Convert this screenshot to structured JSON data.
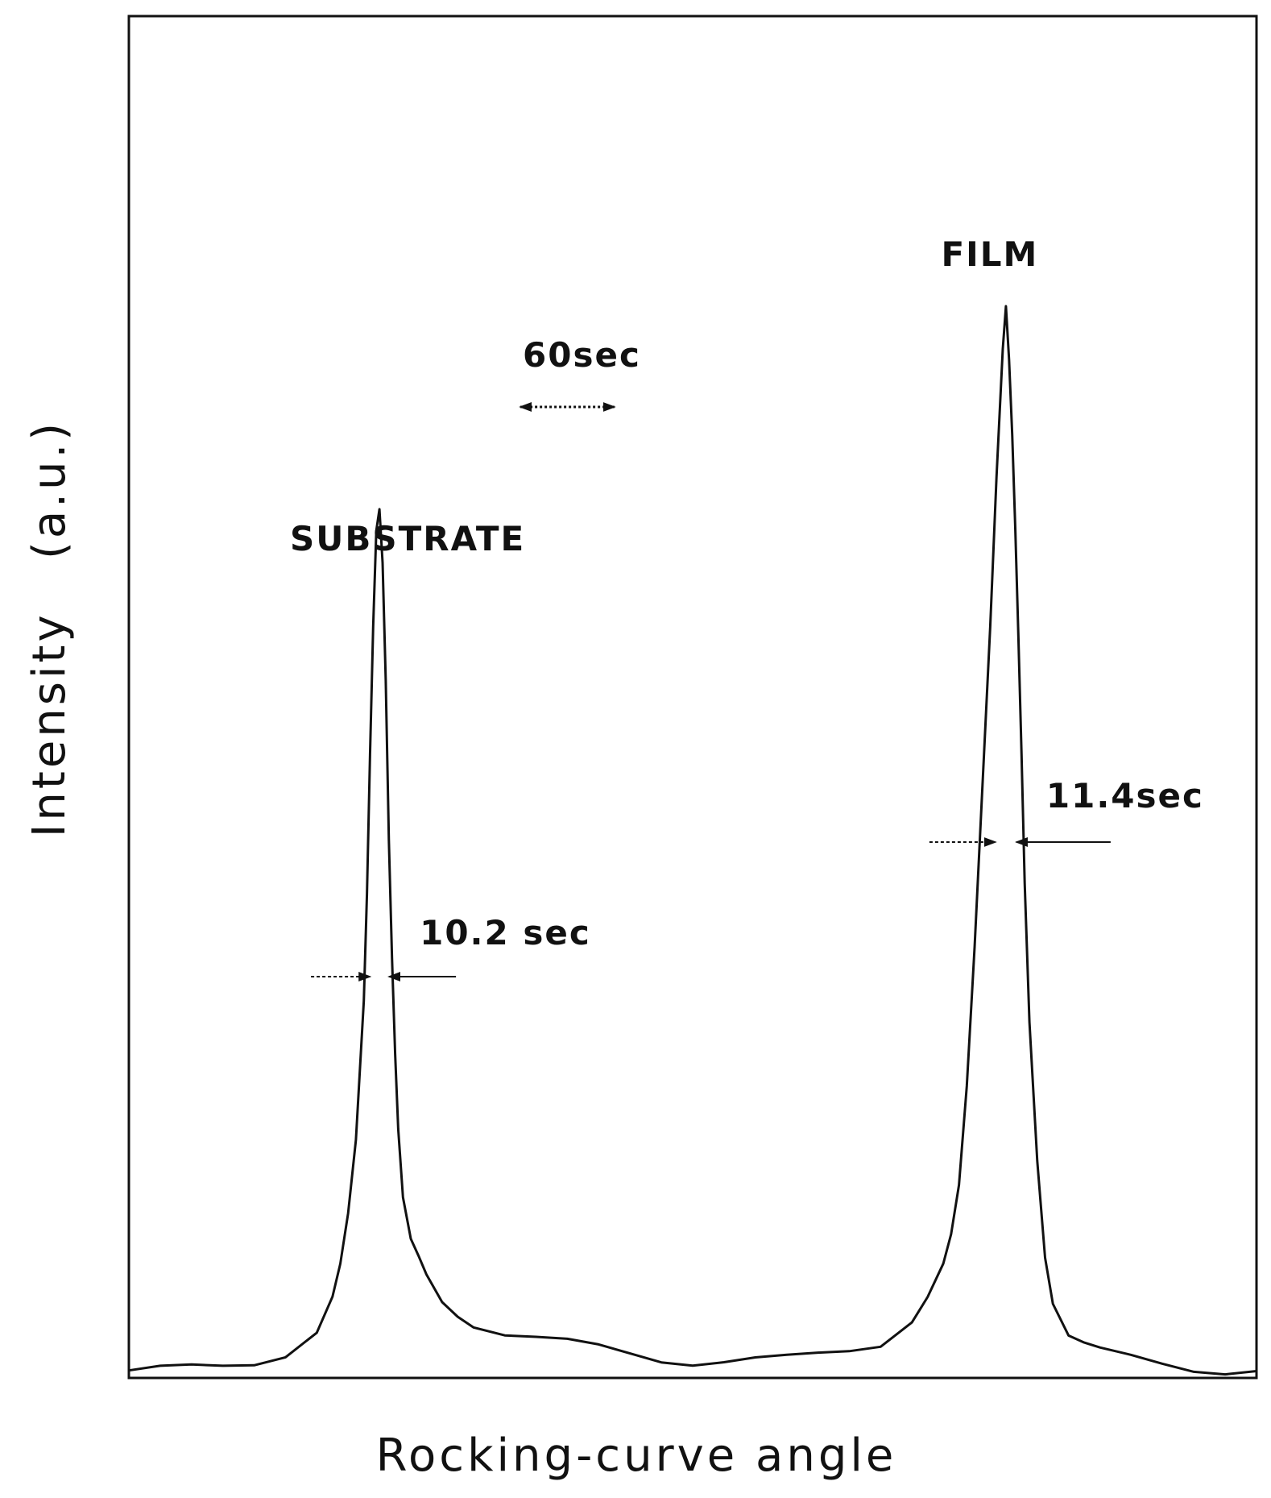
{
  "chart_data": {
    "type": "line",
    "title": "",
    "xlabel": "Rocking-curve angle",
    "ylabel": "Intensity   (a.u.)",
    "x_unit": "sec",
    "xlim": [
      -160,
      560
    ],
    "ylim": [
      0,
      1.0
    ],
    "x": [
      -160,
      -140,
      -120,
      -100,
      -80,
      -60,
      -40,
      -30,
      -25,
      -20,
      -15,
      -10,
      -8,
      -6,
      -4,
      -2,
      0,
      2,
      4,
      6,
      8,
      10,
      12,
      15,
      20,
      25,
      30,
      40,
      50,
      60,
      80,
      100,
      120,
      140,
      160,
      180,
      200,
      220,
      240,
      260,
      280,
      300,
      320,
      340,
      350,
      360,
      365,
      370,
      375,
      380,
      385,
      390,
      392,
      394,
      396,
      398,
      400,
      402,
      404,
      406,
      408,
      410,
      412,
      415,
      420,
      425,
      430,
      440,
      450,
      460,
      480,
      500,
      520,
      540,
      560
    ],
    "series": [
      {
        "values": [
          0.004,
          0.005,
          0.006,
          0.008,
          0.012,
          0.02,
          0.04,
          0.07,
          0.1,
          0.15,
          0.22,
          0.35,
          0.45,
          0.58,
          0.7,
          0.79,
          0.81,
          0.76,
          0.65,
          0.5,
          0.39,
          0.3,
          0.23,
          0.17,
          0.13,
          0.11,
          0.09,
          0.065,
          0.055,
          0.048,
          0.04,
          0.035,
          0.03,
          0.025,
          0.02,
          0.015,
          0.012,
          0.012,
          0.013,
          0.015,
          0.02,
          0.025,
          0.03,
          0.05,
          0.07,
          0.1,
          0.13,
          0.18,
          0.27,
          0.4,
          0.55,
          0.7,
          0.77,
          0.84,
          0.9,
          0.96,
          1.0,
          0.95,
          0.88,
          0.79,
          0.69,
          0.58,
          0.46,
          0.33,
          0.2,
          0.11,
          0.07,
          0.04,
          0.03,
          0.022,
          0.015,
          0.01,
          0.006,
          0.004,
          0.004
        ]
      }
    ],
    "annotations": {
      "substrate_label": "SUBSTRATE",
      "film_label": "FILM",
      "scale_label": "60sec",
      "scale_bar_sec": 60,
      "substrate_fwhm_label": "10.2 sec",
      "substrate_fwhm_sec": 10.2,
      "film_fwhm_label": "11.4sec",
      "film_fwhm_sec": 11.4
    },
    "grid": false,
    "legend": "none"
  },
  "colors": {
    "ink": "#111111",
    "background": "#ffffff"
  }
}
